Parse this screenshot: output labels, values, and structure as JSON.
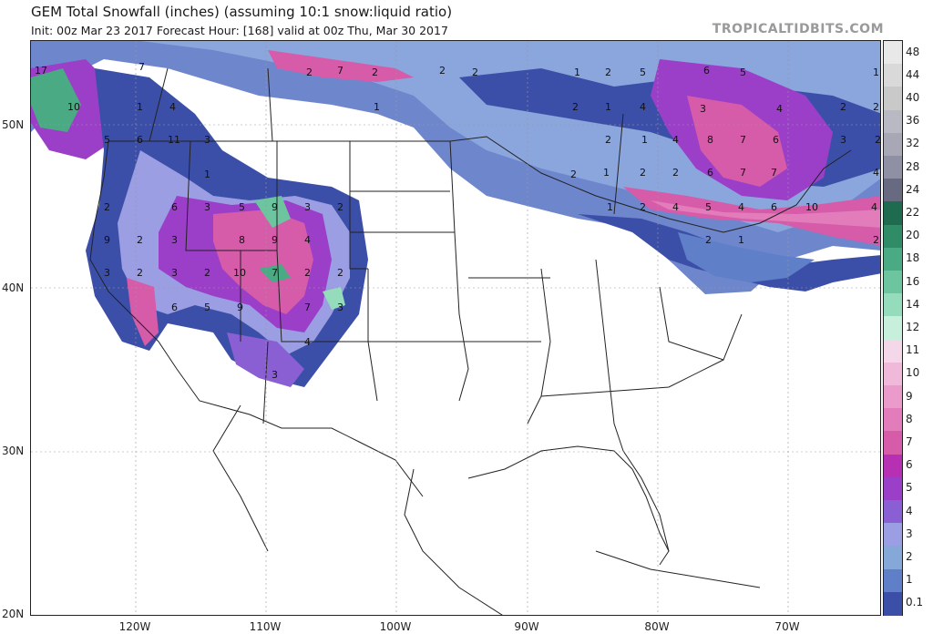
{
  "header": {
    "title": "GEM Total Snowfall (inches) (assuming 10:1 snow:liquid ratio)",
    "subtitle": "Init: 00z Mar 23 2017   Forecast Hour: [168]   valid at 00z Thu, Mar 30 2017",
    "brand": "TROPICALTIDBITS.COM"
  },
  "axes": {
    "lat_labels": [
      "50N",
      "40N",
      "30N",
      "20N"
    ],
    "lon_labels": [
      "120W",
      "110W",
      "100W",
      "90W",
      "80W",
      "70W"
    ]
  },
  "legend": {
    "levels": [
      {
        "label": "48",
        "color": "#e8e8e8"
      },
      {
        "label": "44",
        "color": "#d9d9d9"
      },
      {
        "label": "40",
        "color": "#c9c9c9"
      },
      {
        "label": "36",
        "color": "#b9b9c4"
      },
      {
        "label": "32",
        "color": "#a7a7b6"
      },
      {
        "label": "28",
        "color": "#8f90a3"
      },
      {
        "label": "24",
        "color": "#676a80"
      },
      {
        "label": "22",
        "color": "#1e6b4f"
      },
      {
        "label": "20",
        "color": "#2f8c66"
      },
      {
        "label": "18",
        "color": "#49aa83"
      },
      {
        "label": "16",
        "color": "#6cc59f"
      },
      {
        "label": "14",
        "color": "#95dcbd"
      },
      {
        "label": "12",
        "color": "#c7efdc"
      },
      {
        "label": "11",
        "color": "#f5d7ea"
      },
      {
        "label": "10",
        "color": "#f0b9da"
      },
      {
        "label": "9",
        "color": "#eb9bcb"
      },
      {
        "label": "8",
        "color": "#e27cbb"
      },
      {
        "label": "7",
        "color": "#d65ba9"
      },
      {
        "label": "6",
        "color": "#b72fb3"
      },
      {
        "label": "5",
        "color": "#9b3fc9"
      },
      {
        "label": "4",
        "color": "#8a5fd4"
      },
      {
        "label": "3",
        "color": "#9b9ee3"
      },
      {
        "label": "2",
        "color": "#86a8d8"
      },
      {
        "label": "1",
        "color": "#5f7fc8"
      },
      {
        "label": "0.1",
        "color": "#3c4fa8"
      }
    ]
  },
  "contour_labels": [
    "17",
    "7",
    "2",
    "7",
    "2",
    "2",
    "2",
    "1",
    "2",
    "5",
    "6",
    "5",
    "1",
    "10",
    "1",
    "4",
    "1",
    "2",
    "1",
    "4",
    "3",
    "4",
    "2",
    "2",
    "5",
    "6",
    "11",
    "3",
    "2",
    "1",
    "4",
    "8",
    "7",
    "6",
    "3",
    "2",
    "1",
    "2",
    "1",
    "2",
    "2",
    "6",
    "7",
    "7",
    "4",
    "2",
    "6",
    "3",
    "5",
    "9",
    "3",
    "2",
    "1",
    "2",
    "4",
    "5",
    "4",
    "6",
    "10",
    "4",
    "9",
    "2",
    "3",
    "8",
    "9",
    "4",
    "2",
    "1",
    "2",
    "3",
    "2",
    "3",
    "2",
    "10",
    "7",
    "2",
    "2",
    "6",
    "5",
    "9",
    "7",
    "3",
    "4",
    "3"
  ]
}
